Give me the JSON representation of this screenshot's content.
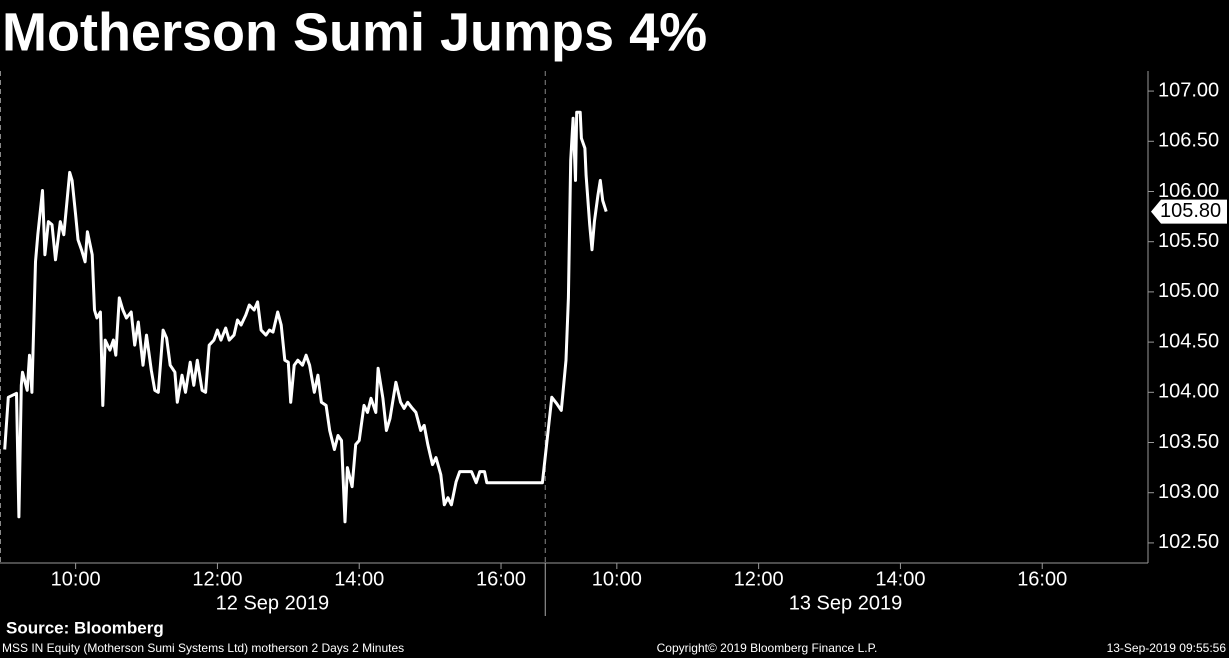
{
  "chart_data": {
    "type": "line",
    "title": "Motherson Sumi Jumps 4%",
    "color": "#ffffff",
    "ylim": [
      102.3,
      107.2
    ],
    "yticks": [
      {
        "value": 102.5,
        "label": "102.50"
      },
      {
        "value": 103,
        "label": "103.00"
      },
      {
        "value": 103.5,
        "label": "103.50"
      },
      {
        "value": 104,
        "label": "104.00"
      },
      {
        "value": 104.5,
        "label": "104.50"
      },
      {
        "value": 105,
        "label": "105.00"
      },
      {
        "value": 105.5,
        "label": "105.50"
      },
      {
        "value": 106,
        "label": "106.00"
      },
      {
        "value": 106.5,
        "label": "106.50"
      },
      {
        "value": 107,
        "label": "107.00"
      }
    ],
    "last_value": {
      "value": 105.8,
      "label": "105.80"
    },
    "sessions": [
      {
        "date": "12 Sep 2019",
        "xlim": [
          "08:56",
          "16:37"
        ],
        "xticks": [
          "10:00",
          "12:00",
          "14:00",
          "16:00"
        ],
        "x": [
          "09:00",
          "09:03",
          "09:10",
          "09:12",
          "09:14",
          "09:15",
          "09:19",
          "09:21",
          "09:23",
          "09:26",
          "09:28",
          "09:32",
          "09:34",
          "09:37",
          "09:40",
          "09:43",
          "09:47",
          "09:50",
          "09:52",
          "09:55",
          "09:57",
          "10:00",
          "10:02",
          "10:05",
          "10:08",
          "10:10",
          "10:14",
          "10:16",
          "10:18",
          "10:21",
          "10:23",
          "10:25",
          "10:29",
          "10:32",
          "10:34",
          "10:37",
          "10:40",
          "10:43",
          "10:47",
          "10:50",
          "10:53",
          "10:57",
          "11:00",
          "11:04",
          "11:07",
          "11:10",
          "11:14",
          "11:17",
          "11:20",
          "11:24",
          "11:26",
          "11:30",
          "11:33",
          "11:37",
          "11:40",
          "11:43",
          "11:47",
          "11:50",
          "11:53",
          "11:57",
          "12:00",
          "12:03",
          "12:07",
          "12:10",
          "12:14",
          "12:17",
          "12:20",
          "12:24",
          "12:27",
          "12:31",
          "12:34",
          "12:37",
          "12:41",
          "12:44",
          "12:47",
          "12:51",
          "12:54",
          "12:57",
          "13:00",
          "13:02",
          "13:05",
          "13:08",
          "13:12",
          "13:15",
          "13:18",
          "13:22",
          "13:25",
          "13:28",
          "13:32",
          "13:35",
          "13:39",
          "13:42",
          "13:45",
          "13:48",
          "13:50",
          "13:54",
          "13:57",
          "14:00",
          "14:04",
          "14:07",
          "14:10",
          "14:14",
          "14:16",
          "14:20",
          "14:23",
          "14:26",
          "14:31",
          "14:35",
          "14:38",
          "14:41",
          "14:45",
          "14:48",
          "14:52",
          "14:55",
          "14:58",
          "15:02",
          "15:05",
          "15:09",
          "15:12",
          "15:15",
          "15:18",
          "15:22",
          "15:25",
          "15:29",
          "15:32",
          "15:35",
          "15:39",
          "15:42",
          "15:46",
          "15:48",
          "16:35"
        ],
        "values": [
          103.43,
          103.95,
          103.99,
          102.76,
          104.07,
          104.2,
          104.02,
          104.37,
          104.0,
          105.3,
          105.57,
          106.01,
          105.37,
          105.7,
          105.67,
          105.32,
          105.7,
          105.57,
          105.82,
          106.19,
          106.11,
          105.77,
          105.52,
          105.42,
          105.3,
          105.6,
          105.37,
          104.82,
          104.74,
          104.8,
          103.87,
          104.52,
          104.42,
          104.52,
          104.37,
          104.94,
          104.82,
          104.74,
          104.8,
          104.47,
          104.7,
          104.27,
          104.57,
          104.22,
          104.02,
          104.0,
          104.62,
          104.54,
          104.27,
          104.2,
          103.9,
          104.17,
          104.0,
          104.3,
          104.07,
          104.32,
          104.02,
          104.0,
          104.47,
          104.52,
          104.62,
          104.52,
          104.64,
          104.52,
          104.57,
          104.72,
          104.67,
          104.77,
          104.87,
          104.82,
          104.9,
          104.62,
          104.57,
          104.62,
          104.6,
          104.8,
          104.67,
          104.32,
          104.3,
          103.9,
          104.27,
          104.32,
          104.27,
          104.37,
          104.27,
          104.0,
          104.17,
          103.9,
          103.87,
          103.62,
          103.43,
          103.57,
          103.52,
          102.71,
          103.25,
          103.06,
          103.48,
          103.52,
          103.87,
          103.8,
          103.94,
          103.8,
          104.24,
          103.94,
          103.62,
          103.74,
          104.1,
          103.9,
          103.84,
          103.9,
          103.84,
          103.8,
          103.62,
          103.67,
          103.48,
          103.28,
          103.35,
          103.18,
          102.88,
          102.95,
          102.88,
          103.11,
          103.21,
          103.21,
          103.21,
          103.21,
          103.1,
          103.21,
          103.21,
          103.1,
          103.1
        ]
      },
      {
        "date": "13 Sep 2019",
        "xlim": [
          "08:59",
          "17:28"
        ],
        "xticks": [
          "10:00",
          "12:00",
          "14:00",
          "16:00"
        ],
        "x": [
          "09:05",
          "09:09",
          "09:13",
          "09:17",
          "09:19",
          "09:21",
          "09:23",
          "09:25",
          "09:26",
          "09:29",
          "09:30",
          "09:33",
          "09:34",
          "09:37",
          "09:39",
          "09:41",
          "09:44",
          "09:46",
          "09:48",
          "09:51"
        ],
        "values": [
          103.95,
          103.89,
          103.82,
          104.32,
          104.94,
          106.31,
          106.73,
          106.11,
          106.79,
          106.79,
          106.53,
          106.43,
          106.16,
          105.67,
          105.42,
          105.7,
          105.96,
          106.11,
          105.91,
          105.8
        ]
      }
    ],
    "source": "Source: Bloomberg",
    "footer": {
      "description": "MSS IN Equity (Motherson Sumi Systems Ltd) motherson 2 Days 2 Minutes",
      "copyright": "Copyright© 2019 Bloomberg Finance L.P.",
      "timestamp": "13-Sep-2019 09:55:56"
    }
  }
}
